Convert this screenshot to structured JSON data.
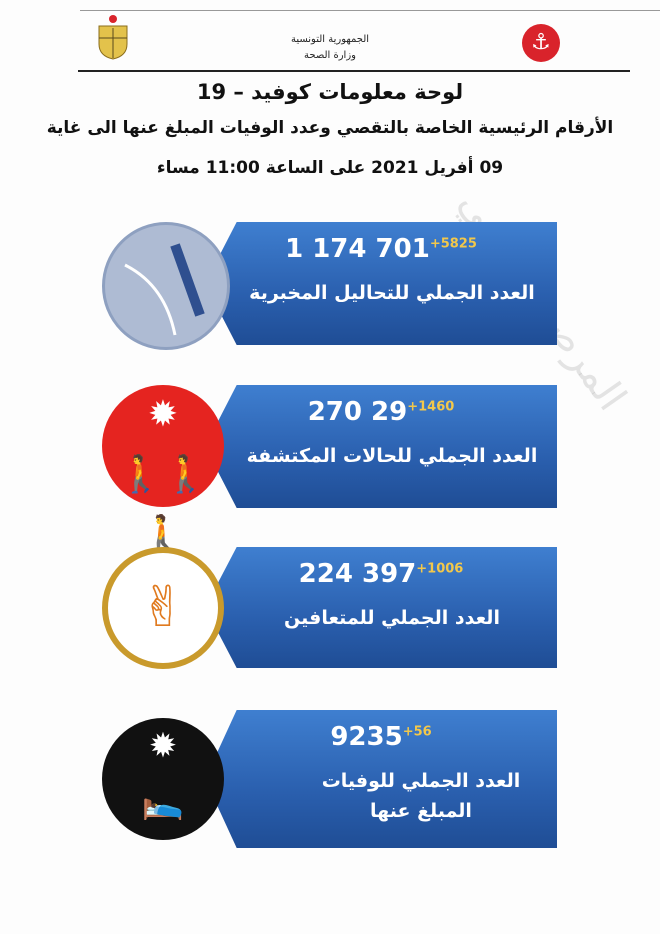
{
  "header": {
    "country": "الجمهورية التونسية",
    "ministry": "وزارة الصحة",
    "title": "لوحة معلومات كوفيد – 19",
    "subtitle": "الأرقام الرئيسية الخاصة بالتقصي وعدد الوفيات المبلغ عنها الى غاية",
    "date": "09 أفريل 2021 على الساعة 11:00 مساء"
  },
  "stats": [
    {
      "total": "1 174 701",
      "delta": "+5825",
      "label": "العدد الجملي للتحاليل المخبرية",
      "icon": "lab-test-swab-icon"
    },
    {
      "total": "270 29",
      "delta": "+1460",
      "label": "العدد  الجملي للحالات المكتشفة",
      "icon": "infected-people-icon"
    },
    {
      "total": "224 397",
      "delta": "+1006",
      "label": "العدد الجملي للمتعافين",
      "icon": "victory-hand-icon"
    },
    {
      "total": "9235",
      "delta": "+56",
      "label": "العدد الجملي للوفيات المبلغ عنها",
      "icon": "patient-bed-virus-icon"
    }
  ],
  "colors": {
    "panel": "#2a5fae",
    "delta": "#f2c84b",
    "red": "#e52420"
  }
}
